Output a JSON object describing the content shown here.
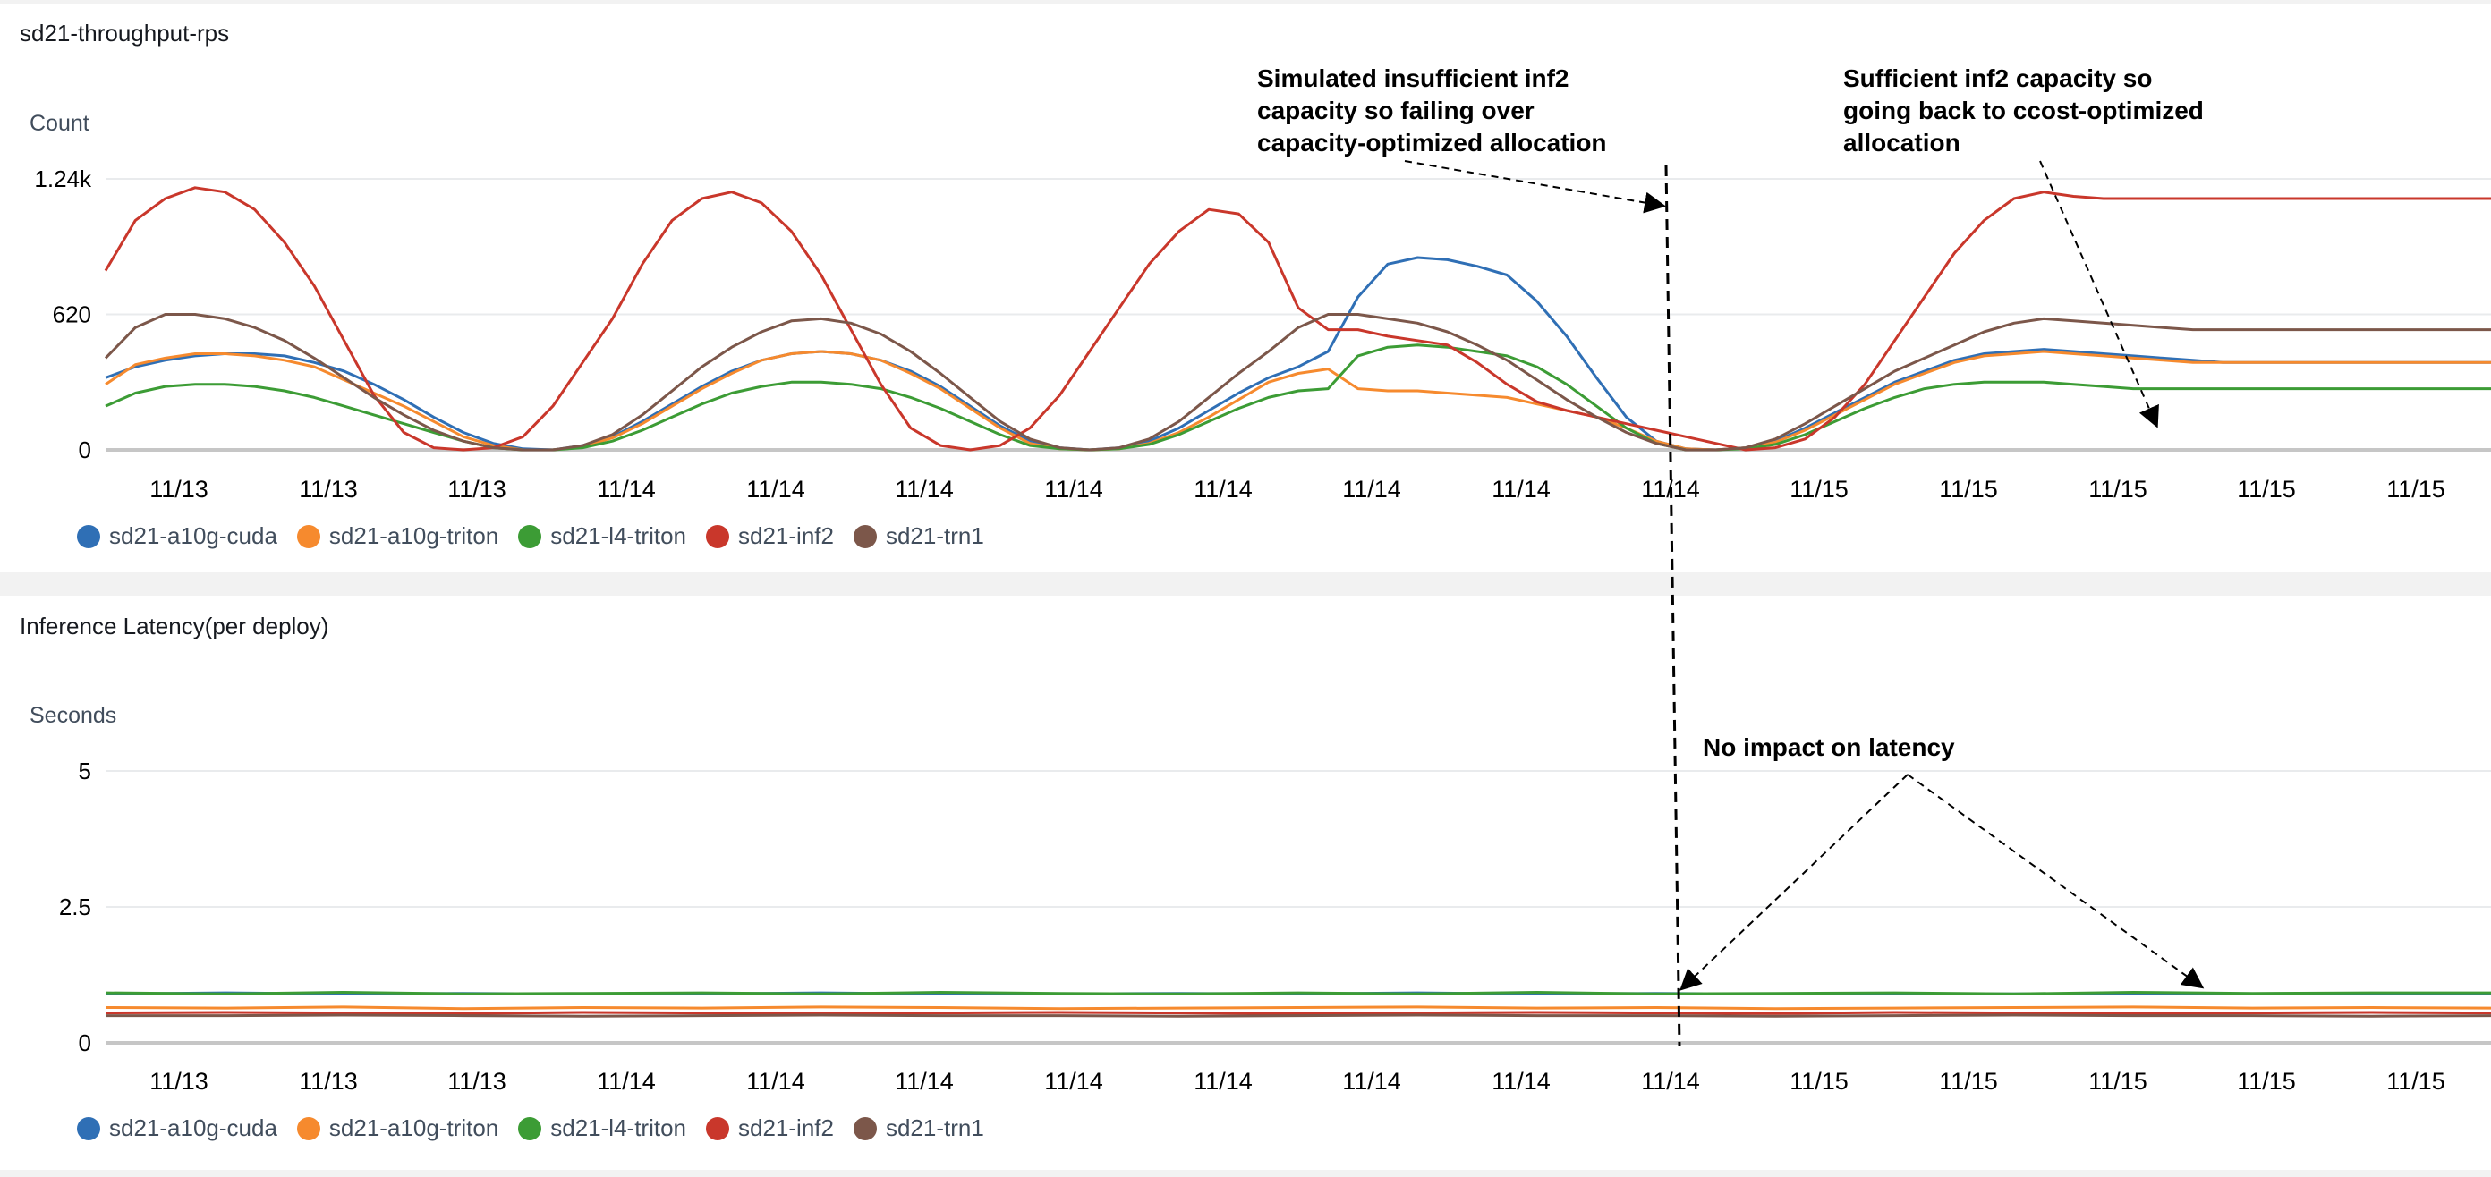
{
  "colors": {
    "sd21-a10g-cuda": "#2f6fb5",
    "sd21-a10g-triton": "#f68a2e",
    "sd21-l4-triton": "#3c9c35",
    "sd21-inf2": "#c9372b",
    "sd21-trn1": "#7c574a"
  },
  "chart_data": [
    {
      "type": "line",
      "title": "sd21-throughput-rps",
      "ylabel": "Count",
      "ylim": [
        0,
        1240
      ],
      "yticks": [
        "0",
        "620",
        "1.24k"
      ],
      "ytick_values": [
        0,
        620,
        1240
      ],
      "xticks": [
        "11/13",
        "11/13",
        "11/13",
        "11/14",
        "11/14",
        "11/14",
        "11/14",
        "11/14",
        "11/14",
        "11/14",
        "11/14",
        "11/15",
        "11/15",
        "11/15",
        "11/15",
        "11/15"
      ],
      "x": [
        0,
        1,
        2,
        3,
        4,
        5,
        6,
        7,
        8,
        9,
        10,
        11,
        12,
        13,
        14,
        15,
        16,
        17,
        18,
        19,
        20,
        21,
        22,
        23,
        24,
        25,
        26,
        27,
        28,
        29,
        30,
        31,
        32,
        33,
        34,
        35,
        36,
        37,
        38,
        39,
        40,
        41,
        42,
        43,
        44,
        45,
        46,
        47,
        48,
        49,
        50,
        51,
        52,
        53,
        54,
        55,
        56,
        57,
        58,
        59,
        60,
        61,
        62,
        63,
        64,
        65,
        66,
        67,
        68,
        69,
        70,
        71,
        72,
        73,
        74,
        75,
        76,
        77,
        78,
        79,
        80
      ],
      "series": [
        {
          "name": "sd21-a10g-cuda",
          "values": [
            330,
            380,
            410,
            430,
            440,
            440,
            430,
            400,
            360,
            300,
            230,
            150,
            80,
            30,
            5,
            0,
            20,
            60,
            130,
            210,
            290,
            360,
            410,
            440,
            450,
            440,
            410,
            360,
            290,
            200,
            110,
            40,
            10,
            0,
            10,
            40,
            100,
            180,
            260,
            330,
            380,
            450,
            700,
            850,
            880,
            870,
            840,
            800,
            680,
            520,
            330,
            150,
            40,
            5,
            0,
            10,
            40,
            100,
            170,
            240,
            310,
            360,
            410,
            440,
            450,
            460,
            450,
            440,
            430,
            420,
            410,
            400,
            400,
            400,
            400,
            400,
            400,
            400,
            400,
            400,
            400
          ]
        },
        {
          "name": "sd21-a10g-triton",
          "values": [
            300,
            390,
            420,
            440,
            440,
            430,
            410,
            380,
            320,
            260,
            200,
            130,
            60,
            20,
            0,
            0,
            15,
            55,
            120,
            200,
            280,
            350,
            410,
            440,
            450,
            440,
            410,
            350,
            280,
            190,
            100,
            30,
            5,
            0,
            5,
            30,
            80,
            150,
            230,
            310,
            350,
            370,
            280,
            270,
            270,
            260,
            250,
            240,
            210,
            180,
            150,
            100,
            40,
            5,
            0,
            10,
            35,
            90,
            160,
            230,
            300,
            350,
            400,
            430,
            440,
            450,
            440,
            430,
            420,
            410,
            400,
            400,
            400,
            400,
            400,
            400,
            400,
            400,
            400,
            400,
            400
          ]
        },
        {
          "name": "sd21-l4-triton",
          "values": [
            200,
            260,
            290,
            300,
            300,
            290,
            270,
            240,
            200,
            160,
            120,
            80,
            40,
            10,
            0,
            0,
            10,
            40,
            90,
            150,
            210,
            260,
            290,
            310,
            310,
            300,
            280,
            240,
            190,
            130,
            70,
            20,
            5,
            0,
            5,
            25,
            70,
            130,
            190,
            240,
            270,
            280,
            430,
            470,
            480,
            470,
            450,
            430,
            380,
            300,
            200,
            100,
            30,
            0,
            0,
            5,
            25,
            70,
            130,
            190,
            240,
            280,
            300,
            310,
            310,
            310,
            300,
            290,
            280,
            280,
            280,
            280,
            280,
            280,
            280,
            280,
            280,
            280,
            280,
            280,
            280
          ]
        },
        {
          "name": "sd21-inf2",
          "values": [
            820,
            1050,
            1150,
            1200,
            1180,
            1100,
            950,
            750,
            500,
            250,
            80,
            10,
            0,
            10,
            60,
            200,
            400,
            600,
            850,
            1050,
            1150,
            1180,
            1130,
            1000,
            800,
            550,
            300,
            100,
            20,
            0,
            20,
            100,
            250,
            450,
            650,
            850,
            1000,
            1100,
            1080,
            950,
            650,
            550,
            550,
            520,
            500,
            480,
            400,
            300,
            220,
            180,
            150,
            120,
            90,
            60,
            30,
            0,
            10,
            50,
            150,
            300,
            500,
            700,
            900,
            1050,
            1150,
            1180,
            1160,
            1150,
            1150,
            1150,
            1150,
            1150,
            1150,
            1150,
            1150,
            1150,
            1150,
            1150,
            1150,
            1150,
            1150
          ]
        },
        {
          "name": "sd21-trn1",
          "values": [
            420,
            560,
            620,
            620,
            600,
            560,
            500,
            420,
            330,
            240,
            160,
            90,
            40,
            10,
            0,
            0,
            20,
            70,
            160,
            270,
            380,
            470,
            540,
            590,
            600,
            580,
            530,
            450,
            350,
            240,
            130,
            50,
            10,
            0,
            10,
            50,
            130,
            240,
            350,
            450,
            560,
            620,
            620,
            600,
            580,
            540,
            480,
            410,
            320,
            230,
            150,
            80,
            30,
            0,
            0,
            10,
            50,
            120,
            200,
            280,
            360,
            420,
            480,
            540,
            580,
            600,
            590,
            580,
            570,
            560,
            550,
            550,
            550,
            550,
            550,
            550,
            550,
            550,
            550,
            550,
            550
          ]
        }
      ]
    },
    {
      "type": "line",
      "title": "Inference Latency(per deploy)",
      "ylabel": "Seconds",
      "ylim": [
        0,
        5
      ],
      "yticks": [
        "0",
        "2.5",
        "5"
      ],
      "ytick_values": [
        0,
        2.5,
        5
      ],
      "xticks": [
        "11/13",
        "11/13",
        "11/13",
        "11/14",
        "11/14",
        "11/14",
        "11/14",
        "11/14",
        "11/14",
        "11/14",
        "11/14",
        "11/15",
        "11/15",
        "11/15",
        "11/15",
        "11/15"
      ],
      "x": [
        0,
        1,
        2,
        3,
        4,
        5,
        6,
        7,
        8,
        9,
        10,
        11,
        12,
        13,
        14,
        15,
        16,
        17,
        18,
        19,
        20
      ],
      "series": [
        {
          "name": "sd21-a10g-cuda",
          "values": [
            0.9,
            0.92,
            0.9,
            0.91,
            0.9,
            0.9,
            0.92,
            0.9,
            0.9,
            0.91,
            0.9,
            0.92,
            0.9,
            0.91,
            0.9,
            0.9,
            0.9,
            0.91,
            0.9,
            0.9,
            0.9
          ]
        },
        {
          "name": "sd21-a10g-triton",
          "values": [
            0.65,
            0.64,
            0.66,
            0.63,
            0.65,
            0.64,
            0.66,
            0.65,
            0.63,
            0.64,
            0.65,
            0.66,
            0.64,
            0.65,
            0.63,
            0.64,
            0.65,
            0.66,
            0.64,
            0.65,
            0.64
          ]
        },
        {
          "name": "sd21-l4-triton",
          "values": [
            0.92,
            0.9,
            0.93,
            0.9,
            0.91,
            0.92,
            0.9,
            0.93,
            0.91,
            0.9,
            0.92,
            0.9,
            0.93,
            0.9,
            0.91,
            0.92,
            0.9,
            0.93,
            0.91,
            0.92,
            0.92
          ]
        },
        {
          "name": "sd21-inf2",
          "values": [
            0.55,
            0.56,
            0.55,
            0.54,
            0.56,
            0.55,
            0.54,
            0.55,
            0.56,
            0.55,
            0.54,
            0.55,
            0.56,
            0.55,
            0.54,
            0.56,
            0.55,
            0.54,
            0.55,
            0.56,
            0.55
          ]
        },
        {
          "name": "sd21-trn1",
          "values": [
            0.5,
            0.5,
            0.51,
            0.5,
            0.49,
            0.5,
            0.51,
            0.5,
            0.5,
            0.49,
            0.5,
            0.51,
            0.5,
            0.5,
            0.49,
            0.5,
            0.51,
            0.5,
            0.5,
            0.49,
            0.5
          ]
        }
      ]
    }
  ],
  "annotations": {
    "failover": "Simulated insufficient inf2\ncapacity so failing over\ncapacity-optimized allocation",
    "failback": "Sufficient inf2 capacity so\ngoing back to ccost-optimized\nallocation",
    "latency": "No impact on latency"
  }
}
